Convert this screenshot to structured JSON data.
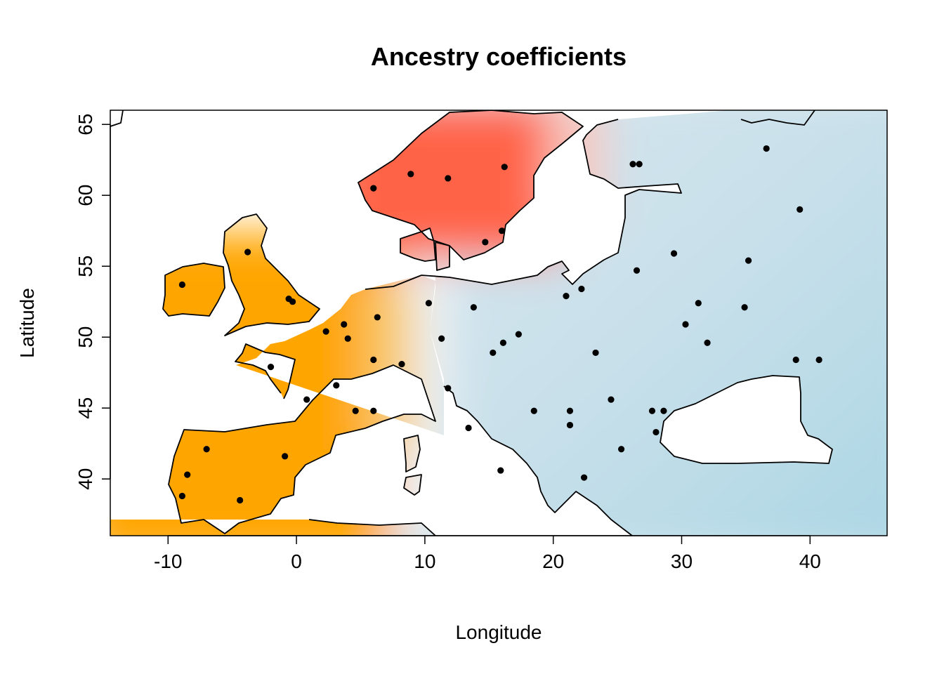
{
  "chart_data": {
    "type": "map",
    "title": "Ancestry coefficients",
    "xlabel": "Longitude",
    "ylabel": "Latitude",
    "xlim": [
      -14.5,
      46
    ],
    "ylim": [
      36,
      66
    ],
    "x_ticks": [
      -10,
      0,
      10,
      20,
      30,
      40
    ],
    "y_ticks": [
      40,
      45,
      50,
      55,
      60,
      65
    ],
    "x_tick_labels": [
      "-10",
      "0",
      "10",
      "20",
      "30",
      "40"
    ],
    "y_tick_labels": [
      "40",
      "45",
      "50",
      "55",
      "60",
      "65"
    ],
    "cluster_colors": {
      "western": "#ffa500",
      "northern": "#ff6347",
      "eastern": "#c8e0ea"
    },
    "sample_points": [
      [
        -8.9,
        53.7
      ],
      [
        -3.8,
        56.0
      ],
      [
        -0.6,
        52.7
      ],
      [
        -0.3,
        52.5
      ],
      [
        2.3,
        50.4
      ],
      [
        3.7,
        50.9
      ],
      [
        4.0,
        49.9
      ],
      [
        6.3,
        51.4
      ],
      [
        6.0,
        48.4
      ],
      [
        8.2,
        48.1
      ],
      [
        -2.0,
        47.9
      ],
      [
        0.8,
        45.6
      ],
      [
        3.1,
        46.6
      ],
      [
        4.6,
        44.8
      ],
      [
        6.0,
        44.8
      ],
      [
        -7.0,
        42.1
      ],
      [
        -0.9,
        41.6
      ],
      [
        -8.5,
        40.3
      ],
      [
        -8.9,
        38.8
      ],
      [
        -4.4,
        38.5
      ],
      [
        10.3,
        52.4
      ],
      [
        11.3,
        49.9
      ],
      [
        11.8,
        46.4
      ],
      [
        13.4,
        43.6
      ],
      [
        15.9,
        40.6
      ],
      [
        13.8,
        52.1
      ],
      [
        15.3,
        48.9
      ],
      [
        16.1,
        49.6
      ],
      [
        17.3,
        50.2
      ],
      [
        18.5,
        44.8
      ],
      [
        21.0,
        52.9
      ],
      [
        22.2,
        53.4
      ],
      [
        21.3,
        44.8
      ],
      [
        21.3,
        43.8
      ],
      [
        23.3,
        48.9
      ],
      [
        24.5,
        45.6
      ],
      [
        25.3,
        42.1
      ],
      [
        22.4,
        40.1
      ],
      [
        26.5,
        54.7
      ],
      [
        29.4,
        55.9
      ],
      [
        26.2,
        62.2
      ],
      [
        26.7,
        62.2
      ],
      [
        31.3,
        52.4
      ],
      [
        30.3,
        50.9
      ],
      [
        32.0,
        49.6
      ],
      [
        27.7,
        44.8
      ],
      [
        28.6,
        44.8
      ],
      [
        28.0,
        43.3
      ],
      [
        35.2,
        55.4
      ],
      [
        34.9,
        52.1
      ],
      [
        36.6,
        63.3
      ],
      [
        39.2,
        59.0
      ],
      [
        38.9,
        48.4
      ],
      [
        40.7,
        48.4
      ],
      [
        8.9,
        61.5
      ],
      [
        11.8,
        61.2
      ],
      [
        16.2,
        62.0
      ],
      [
        14.7,
        56.7
      ],
      [
        16.0,
        57.5
      ],
      [
        6.0,
        60.5
      ]
    ]
  }
}
